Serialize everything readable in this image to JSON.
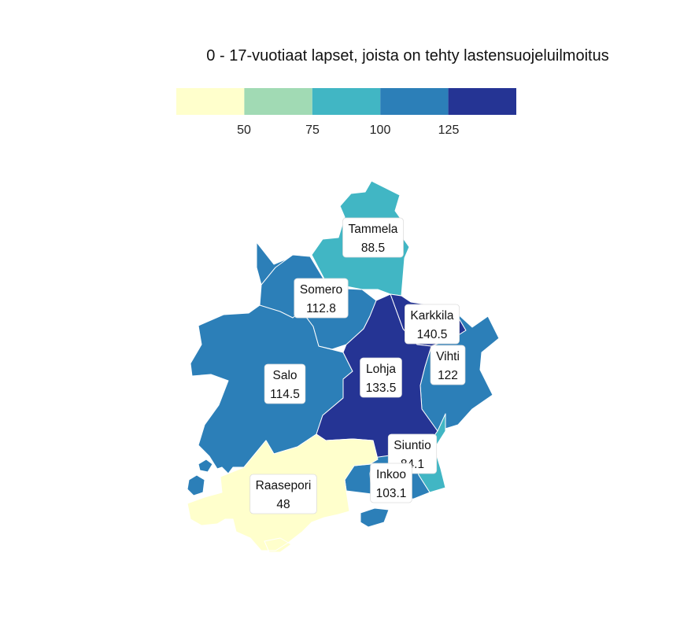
{
  "title": "0 - 17-vuotiaat lapset, joista on tehty lastensuojeluilmoitus",
  "legend": {
    "colors": [
      "#ffffcc",
      "#a1dab4",
      "#41b6c4",
      "#2c7fb8",
      "#253494"
    ],
    "ticks": [
      "50",
      "75",
      "100",
      "125"
    ]
  },
  "municipalities": [
    {
      "name": "Tammela",
      "value": "88.5",
      "color": "#41b6c4"
    },
    {
      "name": "Somero",
      "value": "112.8",
      "color": "#2c7fb8"
    },
    {
      "name": "Karkkila",
      "value": "140.5",
      "color": "#253494"
    },
    {
      "name": "Vihti",
      "value": "122",
      "color": "#2c7fb8"
    },
    {
      "name": "Salo",
      "value": "114.5",
      "color": "#2c7fb8"
    },
    {
      "name": "Lohja",
      "value": "133.5",
      "color": "#253494"
    },
    {
      "name": "Siuntio",
      "value": "84.1",
      "color": "#41b6c4"
    },
    {
      "name": "Inkoo",
      "value": "103.1",
      "color": "#2c7fb8"
    },
    {
      "name": "Raasepori",
      "value": "48",
      "color": "#ffffcc"
    }
  ]
}
